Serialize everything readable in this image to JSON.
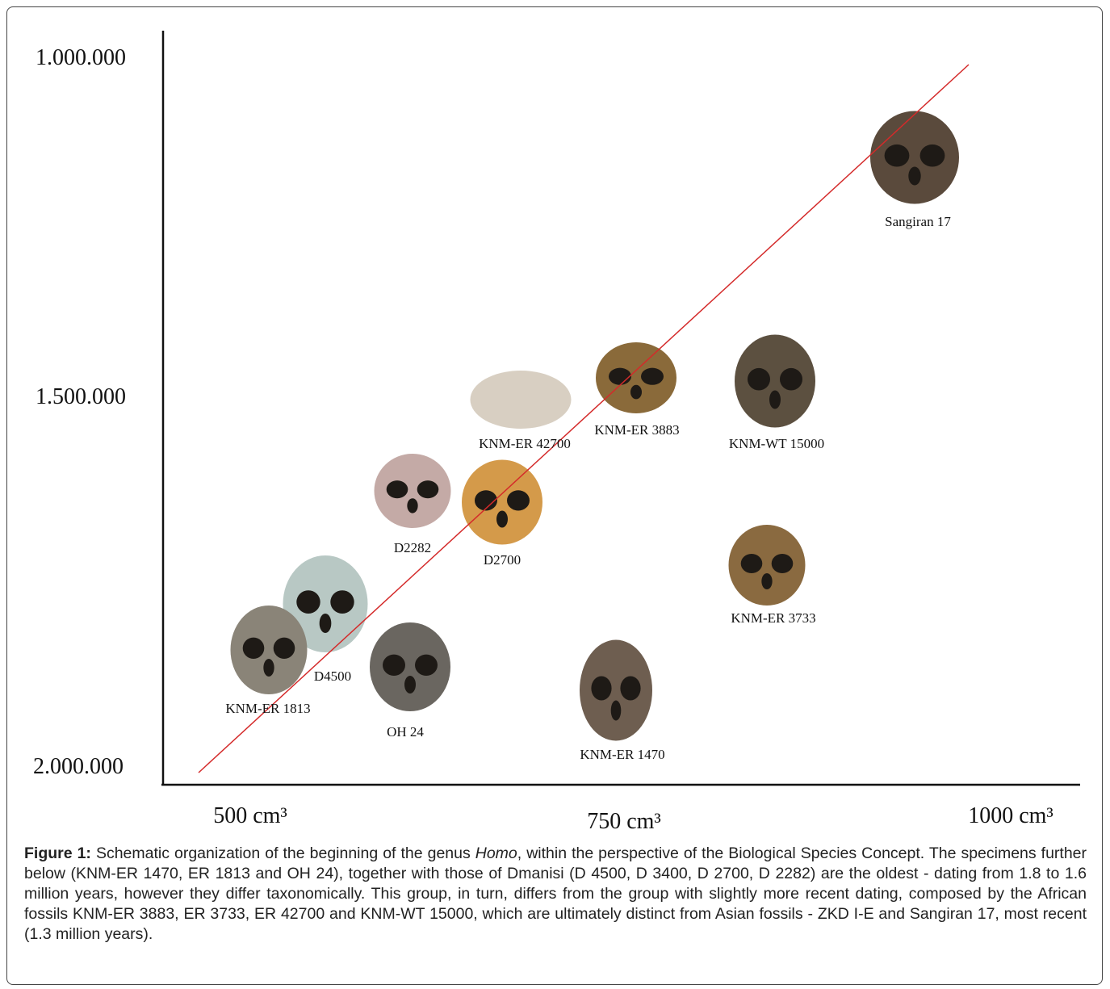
{
  "figure": {
    "y_labels": [
      "1.000.000",
      "1.500.000",
      "2.000.000"
    ],
    "x_labels": [
      "500 cm³",
      "750 cm³",
      "1000 cm³"
    ],
    "specimens": [
      "Sangiran 17",
      "KNM-ER 3883",
      "KNM-WT 15000",
      "KNM-ER 42700",
      "D2282",
      "D2700",
      "KNM-ER 3733",
      "D4500",
      "KNM-ER 1813",
      "OH 24",
      "KNM-ER 1470"
    ]
  },
  "caption": {
    "label": "Figure 1:",
    "text_before": "Schematic organization of the beginning of the genus",
    "emphasis": "Homo",
    "text_after": ", within the perspective of the Biological Species Concept. The specimens further below (KNM-ER 1470, ER 1813 and OH 24), together with those of Dmanisi (D 4500, D 3400, D 2700, D 2282) are the oldest - dating from 1.8 to 1.6 million years, however they differ taxonomically. This group, in turn, differs from the group with slightly more recent dating, composed by the African fossils KNM-ER 3883, ER 3733, ER 42700 and KNM-WT 15000, which are ultimately distinct from Asian fossils - ZKD I-E and Sangiran 17, most recent (1.3 million years)."
  }
}
